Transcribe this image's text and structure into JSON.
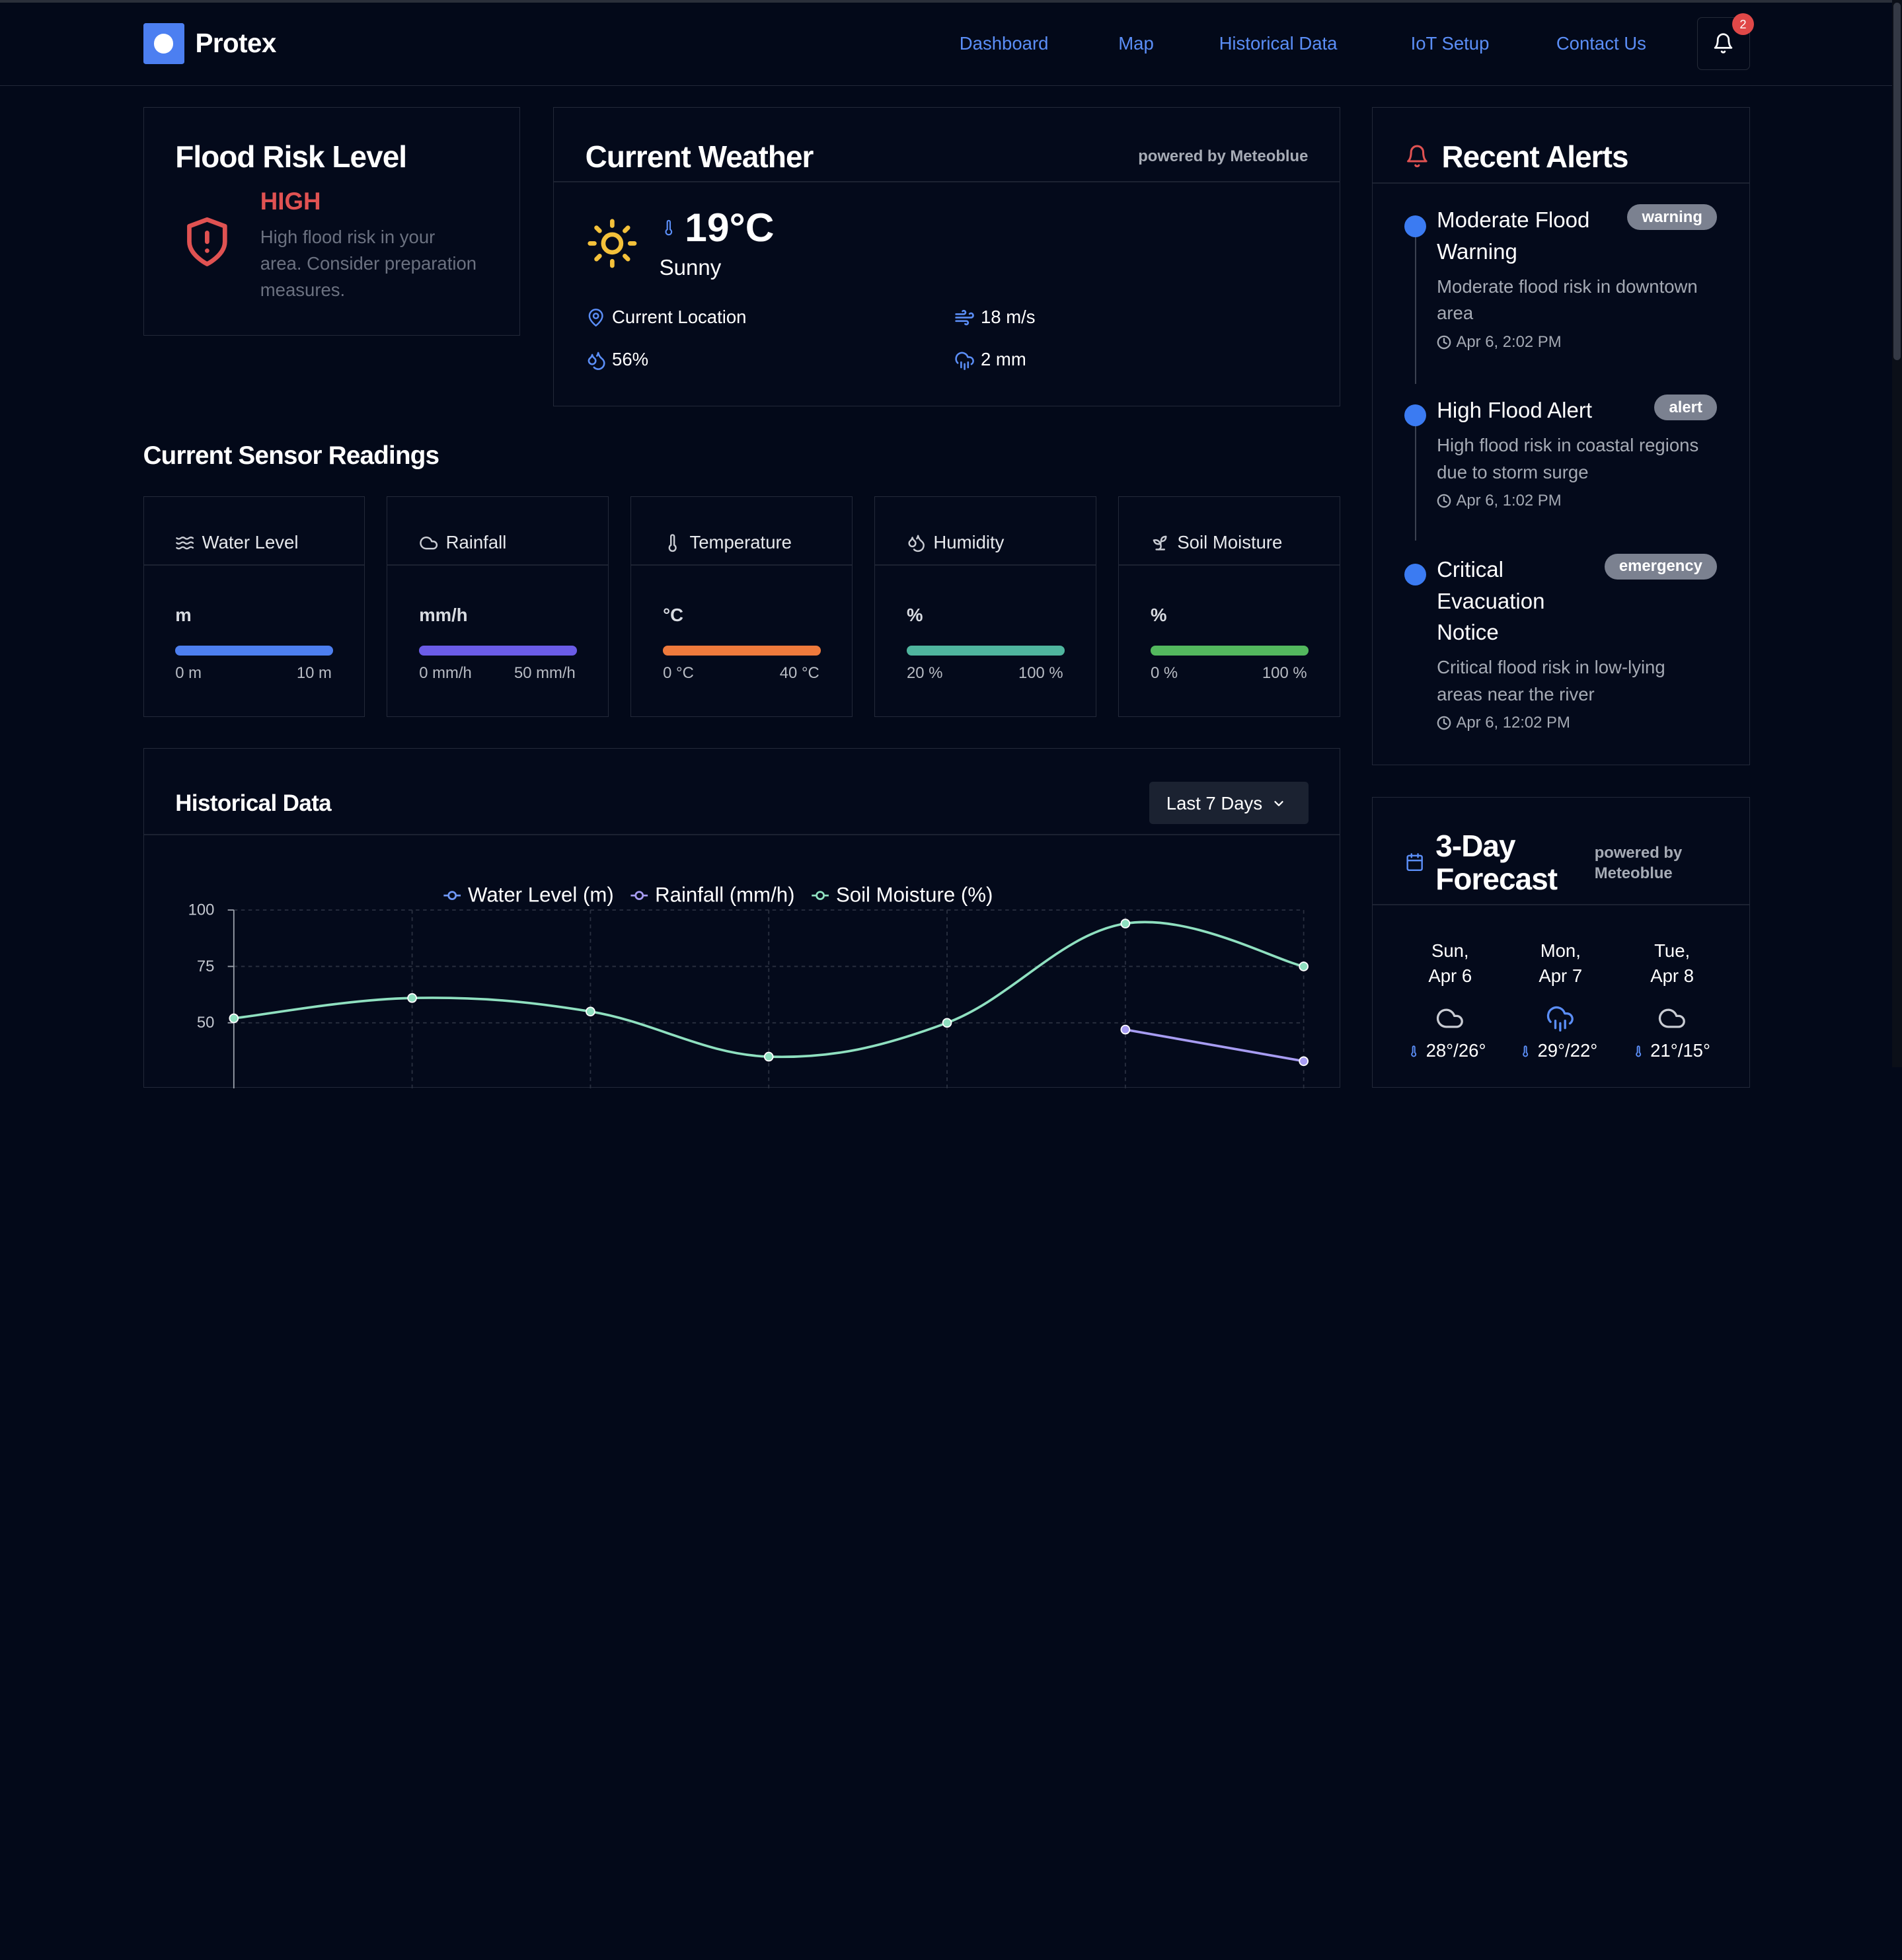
{
  "app": {
    "name": "Protex",
    "notification_count": "2"
  },
  "nav": {
    "items": [
      "Dashboard",
      "Map",
      "Historical Data",
      "IoT Setup",
      "Contact Us"
    ]
  },
  "flood_risk": {
    "title": "Flood Risk Level",
    "level": "HIGH",
    "description_lines": [
      "High flood risk in your",
      "area. Consider preparation",
      "measures."
    ],
    "color": "#e05252"
  },
  "weather": {
    "title": "Current Weather",
    "powered_by": "powered by Meteoblue",
    "temperature": "19°C",
    "condition": "Sunny",
    "location": "Current Location",
    "wind": "18 m/s",
    "humidity": "56%",
    "precipitation": "2 mm",
    "icons": [
      "sun-icon",
      "thermometer-icon",
      "map-pin-icon",
      "wind-icon",
      "droplets-icon",
      "cloud-rain-icon"
    ]
  },
  "sensors": {
    "title": "Current Sensor Readings",
    "items": [
      {
        "label": "Water Level",
        "unit": "m",
        "min": "0 m",
        "max": "10 m",
        "color": "#4d7ff0",
        "icon": "waves-icon"
      },
      {
        "label": "Rainfall",
        "unit": "mm/h",
        "min": "0 mm/h",
        "max": "50 mm/h",
        "color": "#6b5ce7",
        "icon": "cloud-icon"
      },
      {
        "label": "Temperature",
        "unit": "°C",
        "min": "0 °C",
        "max": "40 °C",
        "color": "#ef7a3c",
        "icon": "thermometer-icon"
      },
      {
        "label": "Humidity",
        "unit": "%",
        "min": "20 %",
        "max": "100 %",
        "color": "#4fb59e",
        "icon": "droplets-icon"
      },
      {
        "label": "Soil Moisture",
        "unit": "%",
        "min": "0 %",
        "max": "100 %",
        "color": "#53b85e",
        "icon": "sprout-icon"
      }
    ]
  },
  "historical": {
    "title": "Historical Data",
    "range_select": "Last 7 Days"
  },
  "chart_data": {
    "type": "line",
    "legend_position": "top",
    "ylim": [
      0,
      100
    ],
    "y_ticks": [
      "100",
      "75",
      "50"
    ],
    "grid": true,
    "series": [
      {
        "name": "Water Level (m)",
        "color": "#6f97f4",
        "values": [
          null,
          null,
          null,
          null,
          null,
          null,
          null
        ]
      },
      {
        "name": "Rainfall (mm/h)",
        "color": "#a79cf2",
        "values": [
          null,
          null,
          null,
          null,
          null,
          47,
          33
        ]
      },
      {
        "name": "Soil Moisture (%)",
        "color": "#8fe0c0",
        "values": [
          52,
          61,
          55,
          35,
          50,
          94,
          75
        ]
      }
    ]
  },
  "alerts": {
    "title": "Recent Alerts",
    "items": [
      {
        "title_lines": [
          "Moderate Flood",
          "Warning"
        ],
        "tag": "warning",
        "desc_lines": [
          "Moderate flood risk in downtown",
          "area"
        ],
        "time": "Apr 6, 2:02 PM"
      },
      {
        "title_lines": [
          "High Flood Alert"
        ],
        "tag": "alert",
        "desc_lines": [
          "High flood risk in coastal regions",
          "due to storm surge"
        ],
        "time": "Apr 6, 1:02 PM"
      },
      {
        "title_lines": [
          "Critical",
          "Evacuation",
          "Notice"
        ],
        "tag": "emergency",
        "desc_lines": [
          "Critical flood risk in low-lying",
          "areas near the river"
        ],
        "time": "Apr 6, 12:02 PM"
      }
    ]
  },
  "forecast": {
    "title_lines": [
      "3-Day",
      "Forecast"
    ],
    "powered_by_lines": [
      "powered by",
      "Meteoblue"
    ],
    "days": [
      {
        "label_lines": [
          "Sun,",
          "Apr 6"
        ],
        "icon": "cloud-icon",
        "temps": "28°/26°"
      },
      {
        "label_lines": [
          "Mon,",
          "Apr 7"
        ],
        "icon": "cloud-rain-icon",
        "temps": "29°/22°"
      },
      {
        "label_lines": [
          "Tue,",
          "Apr 8"
        ],
        "icon": "cloud-icon",
        "temps": "21°/15°"
      }
    ]
  },
  "colors": {
    "accent": "#4c7ff1",
    "link": "#5b8ef7",
    "danger": "#e05252",
    "background": "#030919"
  }
}
